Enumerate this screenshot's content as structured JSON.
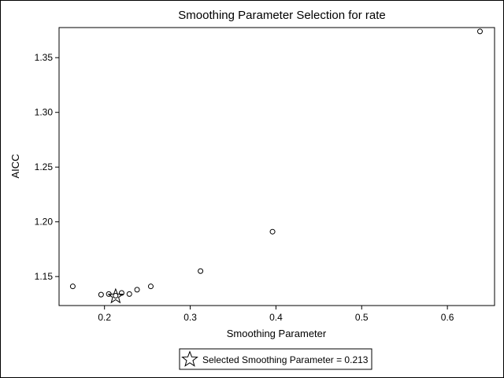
{
  "chart_data": {
    "type": "scatter",
    "title": "Smoothing Parameter Selection for rate",
    "xlabel": "Smoothing Parameter",
    "ylabel": "AICC",
    "xlim": [
      0.147,
      0.655
    ],
    "ylim": [
      1.1235,
      1.3775
    ],
    "x_ticks": [
      0.2,
      0.3,
      0.4,
      0.5,
      0.6
    ],
    "x_tick_labels": [
      "0.2",
      "0.3",
      "0.4",
      "0.5",
      "0.6"
    ],
    "y_ticks": [
      1.15,
      1.2,
      1.25,
      1.3,
      1.35
    ],
    "y_tick_labels": [
      "1.15",
      "1.20",
      "1.25",
      "1.30",
      "1.35"
    ],
    "grid": false,
    "points": [
      {
        "x": 0.163,
        "y": 1.141
      },
      {
        "x": 0.196,
        "y": 1.1335
      },
      {
        "x": 0.205,
        "y": 1.134
      },
      {
        "x": 0.213,
        "y": 1.1325
      },
      {
        "x": 0.22,
        "y": 1.135
      },
      {
        "x": 0.229,
        "y": 1.134
      },
      {
        "x": 0.238,
        "y": 1.138
      },
      {
        "x": 0.254,
        "y": 1.141
      },
      {
        "x": 0.312,
        "y": 1.155
      },
      {
        "x": 0.396,
        "y": 1.191
      },
      {
        "x": 0.638,
        "y": 1.374
      }
    ],
    "selected": {
      "x": 0.213,
      "y": 1.1325
    },
    "legend": {
      "placement": "bottom-center",
      "label": "Selected Smoothing Parameter = 0.213"
    }
  }
}
